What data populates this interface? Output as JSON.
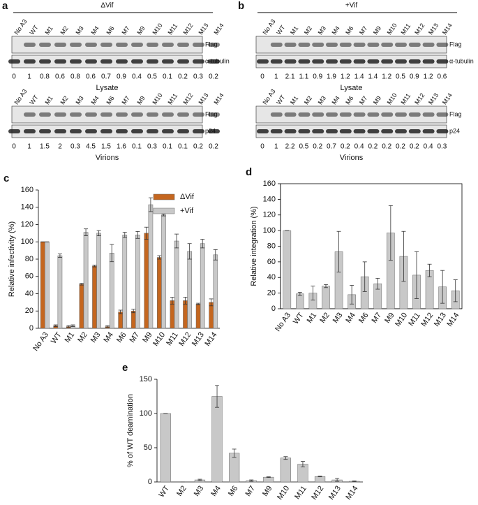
{
  "blots": [
    {
      "label": "a",
      "title": "ΔVif",
      "lanes": [
        "No A3",
        "WT",
        "M1",
        "M2",
        "M3",
        "M4",
        "M6",
        "M7",
        "M9",
        "M10",
        "M11",
        "M12",
        "M13",
        "M14"
      ],
      "lysate": {
        "antibodies": [
          "Flag",
          "α-tubulin"
        ],
        "quant": [
          0,
          1,
          0.8,
          0.6,
          0.8,
          0.6,
          0.7,
          0.9,
          0.4,
          0.5,
          0.1,
          0.2,
          0.3,
          0.2
        ],
        "caption": "Lysate"
      },
      "virions": {
        "antibodies": [
          "Flag",
          "p24"
        ],
        "quant": [
          0,
          1,
          1.5,
          2,
          0.3,
          4.5,
          1.5,
          1.6,
          0.1,
          0.3,
          0.1,
          0.1,
          0.2,
          0.2
        ],
        "caption": "Virions"
      }
    },
    {
      "label": "b",
      "title": "+Vif",
      "lanes": [
        "No A3",
        "WT",
        "M1",
        "M2",
        "M3",
        "M4",
        "M6",
        "M7",
        "M9",
        "M10",
        "M11",
        "M12",
        "M13",
        "M14"
      ],
      "lysate": {
        "antibodies": [
          "Flag",
          "α-tubulin"
        ],
        "quant": [
          0,
          1,
          2.1,
          1.1,
          0.9,
          1.9,
          1.2,
          1.4,
          1.4,
          1.2,
          0.5,
          0.9,
          1.2,
          0.6
        ],
        "caption": "Lysate"
      },
      "virions": {
        "antibodies": [
          "Flag",
          "p24"
        ],
        "quant": [
          0,
          1,
          2.2,
          0.5,
          0.2,
          0.7,
          0.2,
          0.4,
          0.2,
          0.2,
          0.2,
          0.2,
          0.4,
          0.3
        ],
        "caption": "Virions"
      }
    }
  ],
  "chart_data": [
    {
      "type": "bar",
      "label": "c",
      "y_label": "Relative infectivity (%)",
      "categories": [
        "No A3",
        "WT",
        "M1",
        "M2",
        "M3",
        "M4",
        "M6",
        "M7",
        "M9",
        "M10",
        "M11",
        "M12",
        "M13",
        "M14"
      ],
      "series": [
        {
          "name": "ΔVif",
          "color": "#c4661f",
          "values": [
            100,
            3,
            2,
            51,
            72,
            2,
            19,
            20,
            110,
            82,
            32,
            32,
            28,
            30
          ],
          "errors": [
            0,
            1,
            1,
            1,
            1,
            1,
            2,
            2,
            7,
            2,
            4,
            4,
            1,
            4
          ]
        },
        {
          "name": "+Vif",
          "color": "#c8c8c8",
          "values": [
            100,
            84,
            3,
            111,
            110,
            87,
            108,
            108,
            143,
            131,
            101,
            89,
            98,
            85
          ],
          "errors": [
            0,
            2,
            1,
            4,
            3,
            10,
            3,
            4,
            8,
            1,
            8,
            9,
            5,
            6
          ]
        }
      ],
      "ylim": [
        0,
        160
      ],
      "yticks": [
        0,
        20,
        40,
        60,
        80,
        100,
        120,
        140,
        160
      ],
      "legend": "top-right",
      "frame": false
    },
    {
      "type": "bar",
      "label": "d",
      "y_label": "Relative integration (%)",
      "categories": [
        "No A3",
        "WT",
        "M1",
        "M2",
        "M3",
        "M4",
        "M6",
        "M7",
        "M9",
        "M10",
        "M11",
        "M12",
        "M13",
        "M14"
      ],
      "color": "#c8c8c8",
      "values": [
        100,
        19,
        20,
        29,
        73,
        18,
        41,
        32,
        97,
        67,
        43,
        49,
        28,
        23
      ],
      "errors": [
        0,
        2,
        9,
        2,
        26,
        12,
        19,
        7,
        35,
        32,
        30,
        8,
        21,
        14
      ],
      "ylim": [
        0,
        160
      ],
      "yticks": [
        0,
        20,
        40,
        60,
        80,
        100,
        120,
        140,
        160
      ],
      "frame": true
    },
    {
      "type": "bar",
      "label": "e",
      "y_label": "% of WT deamination",
      "categories": [
        "WT",
        "M2",
        "M3",
        "M4",
        "M6",
        "M7",
        "M9",
        "M10",
        "M11",
        "M12",
        "M13",
        "M14"
      ],
      "color": "#c8c8c8",
      "values": [
        100,
        0,
        3,
        125,
        42,
        2,
        7,
        35,
        26,
        8,
        3,
        1
      ],
      "errors": [
        0,
        0,
        1,
        16,
        6,
        1,
        0.5,
        2,
        4,
        0.5,
        2,
        0.5
      ],
      "ylim": [
        0,
        150
      ],
      "yticks": [
        0,
        50,
        100,
        150
      ],
      "frame": false
    }
  ]
}
